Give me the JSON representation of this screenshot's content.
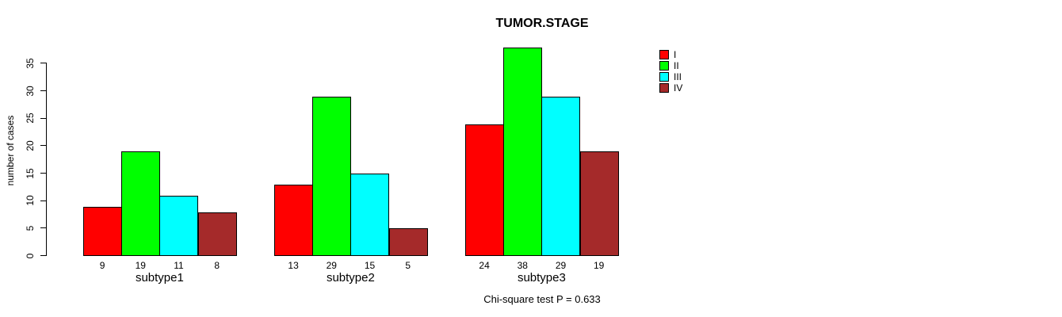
{
  "chart_data": {
    "type": "bar",
    "title": "TUMOR.STAGE",
    "categories": [
      "subtype1",
      "subtype2",
      "subtype3"
    ],
    "series": [
      {
        "name": "I",
        "color": "#FF0000",
        "values": [
          9,
          13,
          24
        ]
      },
      {
        "name": "II",
        "color": "#00FF00",
        "values": [
          19,
          29,
          38
        ]
      },
      {
        "name": "III",
        "color": "#00FFFF",
        "values": [
          11,
          15,
          29
        ]
      },
      {
        "name": "IV",
        "color": "#A52A2A",
        "values": [
          8,
          5,
          19
        ]
      }
    ],
    "xlabel": "",
    "ylabel": "number of cases",
    "yticks": [
      0,
      5,
      10,
      15,
      20,
      25,
      30,
      35
    ],
    "ylim": [
      0,
      35
    ],
    "grid": false,
    "bar_value_labels_shown": true,
    "legend_position": "top-right",
    "annotation": "Chi-square test P = 0.633"
  },
  "colors": {
    "background": "#FFFFFF",
    "axis": "#000000",
    "text": "#000000",
    "bar_border": "#000000"
  }
}
